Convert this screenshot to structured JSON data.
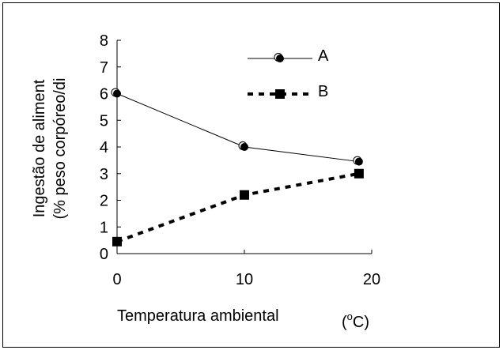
{
  "chart_data": {
    "type": "line",
    "xlabel": "Temperatura ambiental",
    "xunit_base": "(",
    "xunit_sup": "o",
    "xunit_rest": "C)",
    "ylabel_line1": "Ingestão de aliment",
    "ylabel_line2": "(% peso corpóreo/di",
    "xlim": [
      0,
      20
    ],
    "ylim": [
      0,
      8
    ],
    "x_ticks": [
      0,
      10,
      20
    ],
    "y_ticks": [
      0,
      1,
      2,
      3,
      4,
      5,
      6,
      7,
      8
    ],
    "grid": false,
    "legend_position": "top-right",
    "series": [
      {
        "name": "A",
        "style": "solid",
        "marker": "circle",
        "color": "#000000",
        "x": [
          0,
          10,
          19
        ],
        "y": [
          6.0,
          4.0,
          3.45
        ]
      },
      {
        "name": "B",
        "style": "dashed",
        "marker": "square",
        "color": "#000000",
        "x": [
          0,
          10,
          19
        ],
        "y": [
          0.45,
          2.2,
          3.0
        ]
      }
    ]
  }
}
